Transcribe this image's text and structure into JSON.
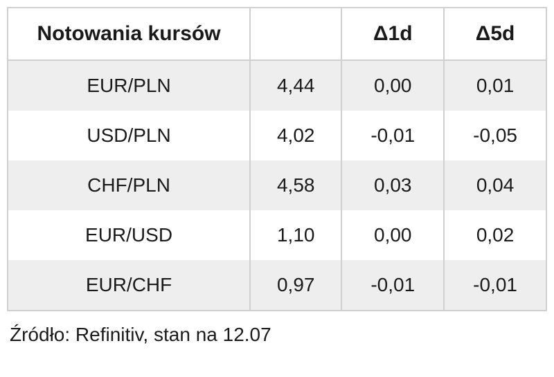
{
  "table": {
    "headers": {
      "title": "Notowania kursów",
      "empty": "",
      "delta1d": "Δ1d",
      "delta5d": "Δ5d"
    },
    "rows": [
      {
        "pair": "EUR/PLN",
        "rate": "4,44",
        "d1": "0,00",
        "d5": "0,01"
      },
      {
        "pair": "USD/PLN",
        "rate": "4,02",
        "d1": "-0,01",
        "d5": "-0,05"
      },
      {
        "pair": "CHF/PLN",
        "rate": "4,58",
        "d1": "0,03",
        "d5": "0,04"
      },
      {
        "pair": "EUR/USD",
        "rate": "1,10",
        "d1": "0,00",
        "d5": "0,02"
      },
      {
        "pair": "EUR/CHF",
        "rate": "0,97",
        "d1": "-0,01",
        "d5": "-0,01"
      }
    ]
  },
  "source": "Źródło: Refinitiv, stan na 12.07",
  "style": {
    "border_color": "#d0d0d0",
    "row_odd_bg": "#eeeeee",
    "row_even_bg": "#ffffff",
    "header_bg": "#ffffff",
    "text_color": "#1a1a1a",
    "header_fontsize": 30,
    "cell_fontsize": 28,
    "source_fontsize": 28
  }
}
